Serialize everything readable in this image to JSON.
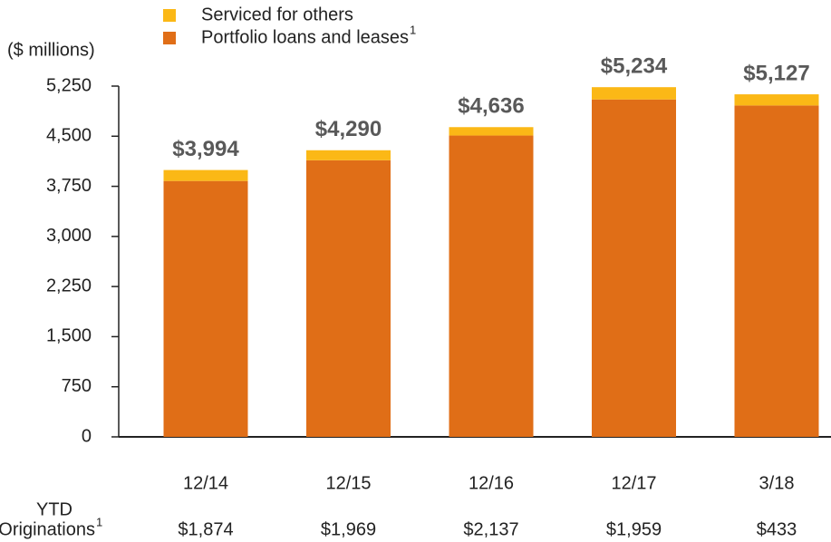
{
  "chart_data": {
    "type": "stacked_bar",
    "y_axis_label": "($ millions)",
    "categories": [
      "12/14",
      "12/15",
      "12/16",
      "12/17",
      "3/18"
    ],
    "series": [
      {
        "name": "Portfolio loans and leases",
        "name_note": "1",
        "color": "#e06e17",
        "values": [
          3830,
          4140,
          4510,
          5050,
          4960
        ]
      },
      {
        "name": "Serviced for others",
        "color": "#fbb816",
        "values": [
          164,
          150,
          126,
          184,
          167
        ]
      }
    ],
    "totals": {
      "values": [
        3994,
        4290,
        4636,
        5234,
        5127
      ],
      "value_labels": [
        "$3,994",
        "$4,290",
        "$4,636",
        "$5,234",
        "$5,127"
      ]
    },
    "ylim": [
      0,
      5250
    ],
    "yticks": [
      0,
      750,
      {
        "value": 1500,
        "label": "1,500"
      },
      {
        "value": 2250,
        "label": "2,250"
      },
      {
        "value": 3000,
        "label": "3,000"
      },
      {
        "value": 3750,
        "label": "3,750"
      },
      {
        "value": 4500,
        "label": "4,500"
      },
      {
        "value": 5250,
        "label": "5,250"
      }
    ],
    "originations": {
      "label_lines": [
        "YTD",
        "Originations"
      ],
      "label_note": "1",
      "values": [
        1874,
        1969,
        2137,
        1959,
        433
      ],
      "value_labels": [
        "$1,874",
        "$1,969",
        "$2,137",
        "$1,959",
        "$433"
      ]
    }
  }
}
